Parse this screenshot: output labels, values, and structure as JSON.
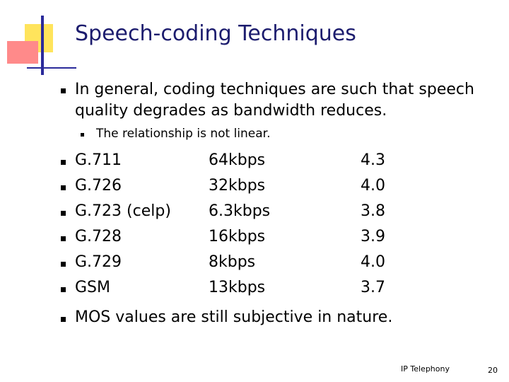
{
  "title": "Speech-coding Techniques",
  "intro": {
    "text": "In general, coding techniques are such that speech quality degrades as bandwidth reduces.",
    "sub": "The relationship is not linear."
  },
  "table": {
    "rows": [
      [
        "G.711",
        "64kbps",
        "4.3"
      ],
      [
        "G.726",
        "32kbps",
        "4.0"
      ],
      [
        "G.723 (celp)",
        "6.3kbps",
        "3.8"
      ],
      [
        "G.728",
        "16kbps",
        "3.9"
      ],
      [
        "G.729",
        "8kbps",
        "4.0"
      ],
      [
        "GSM",
        "13kbps",
        "3.7"
      ]
    ]
  },
  "closing": "MOS values are still subjective in nature.",
  "footer": {
    "text": "IP Telephony",
    "page": "20"
  }
}
